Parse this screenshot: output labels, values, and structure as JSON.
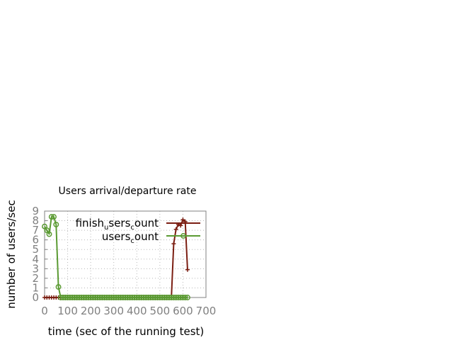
{
  "chart_data": {
    "type": "line",
    "title": "Users arrival/departure rate",
    "xlabel": "time (sec of the running test)",
    "ylabel": "number of users/sec",
    "xlim": [
      0,
      700
    ],
    "ylim": [
      0,
      9
    ],
    "x_ticks": [
      "0",
      "100",
      "200",
      "300",
      "400",
      "500",
      "600",
      "700"
    ],
    "y_ticks": [
      "0",
      "1",
      "2",
      "3",
      "4",
      "5",
      "6",
      "7",
      "8",
      "9"
    ],
    "grid": true,
    "legend_position": "top-right",
    "series": [
      {
        "legend_main": "finish",
        "legend_sub": "u",
        "legend_main2": "sers",
        "legend_sub2": "c",
        "legend_tail": "ount",
        "color": "#7b1e12",
        "marker": "plus",
        "x": [
          0,
          10,
          20,
          30,
          40,
          50,
          60,
          70,
          80,
          90,
          100,
          110,
          120,
          130,
          140,
          150,
          160,
          170,
          180,
          190,
          200,
          210,
          220,
          230,
          240,
          250,
          260,
          270,
          280,
          290,
          300,
          310,
          320,
          330,
          340,
          350,
          360,
          370,
          380,
          390,
          400,
          410,
          420,
          430,
          440,
          450,
          460,
          470,
          480,
          490,
          500,
          510,
          520,
          530,
          540,
          550,
          560,
          570,
          580,
          590,
          600,
          610,
          620
        ],
        "y": [
          0,
          0,
          0,
          0,
          0,
          0,
          0,
          0,
          0,
          0,
          0,
          0,
          0,
          0,
          0,
          0,
          0,
          0,
          0,
          0,
          0,
          0,
          0,
          0,
          0,
          0,
          0,
          0,
          0,
          0,
          0,
          0,
          0,
          0,
          0,
          0,
          0,
          0,
          0,
          0,
          0,
          0,
          0,
          0,
          0,
          0,
          0,
          0,
          0,
          0,
          0,
          0,
          0,
          0,
          0,
          0,
          5.6,
          7.1,
          7.6,
          7.5,
          8.1,
          7.9,
          2.9
        ]
      },
      {
        "legend_main": "users",
        "legend_sub": "c",
        "legend_tail": "ount",
        "color": "#5a9a32",
        "marker": "circle",
        "x": [
          0,
          10,
          20,
          30,
          40,
          50,
          60,
          70,
          80,
          90,
          100,
          110,
          120,
          130,
          140,
          150,
          160,
          170,
          180,
          190,
          200,
          210,
          220,
          230,
          240,
          250,
          260,
          270,
          280,
          290,
          300,
          310,
          320,
          330,
          340,
          350,
          360,
          370,
          380,
          390,
          400,
          410,
          420,
          430,
          440,
          450,
          460,
          470,
          480,
          490,
          500,
          510,
          520,
          530,
          540,
          550,
          560,
          570,
          580,
          590,
          600,
          610,
          620
        ],
        "y": [
          7.4,
          7.0,
          6.6,
          8.4,
          8.4,
          7.6,
          1.1,
          0,
          0,
          0,
          0,
          0,
          0,
          0,
          0,
          0,
          0,
          0,
          0,
          0,
          0,
          0,
          0,
          0,
          0,
          0,
          0,
          0,
          0,
          0,
          0,
          0,
          0,
          0,
          0,
          0,
          0,
          0,
          0,
          0,
          0,
          0,
          0,
          0,
          0,
          0,
          0,
          0,
          0,
          0,
          0,
          0,
          0,
          0,
          0,
          0,
          0,
          0,
          0,
          0,
          0,
          0,
          0
        ]
      }
    ]
  }
}
